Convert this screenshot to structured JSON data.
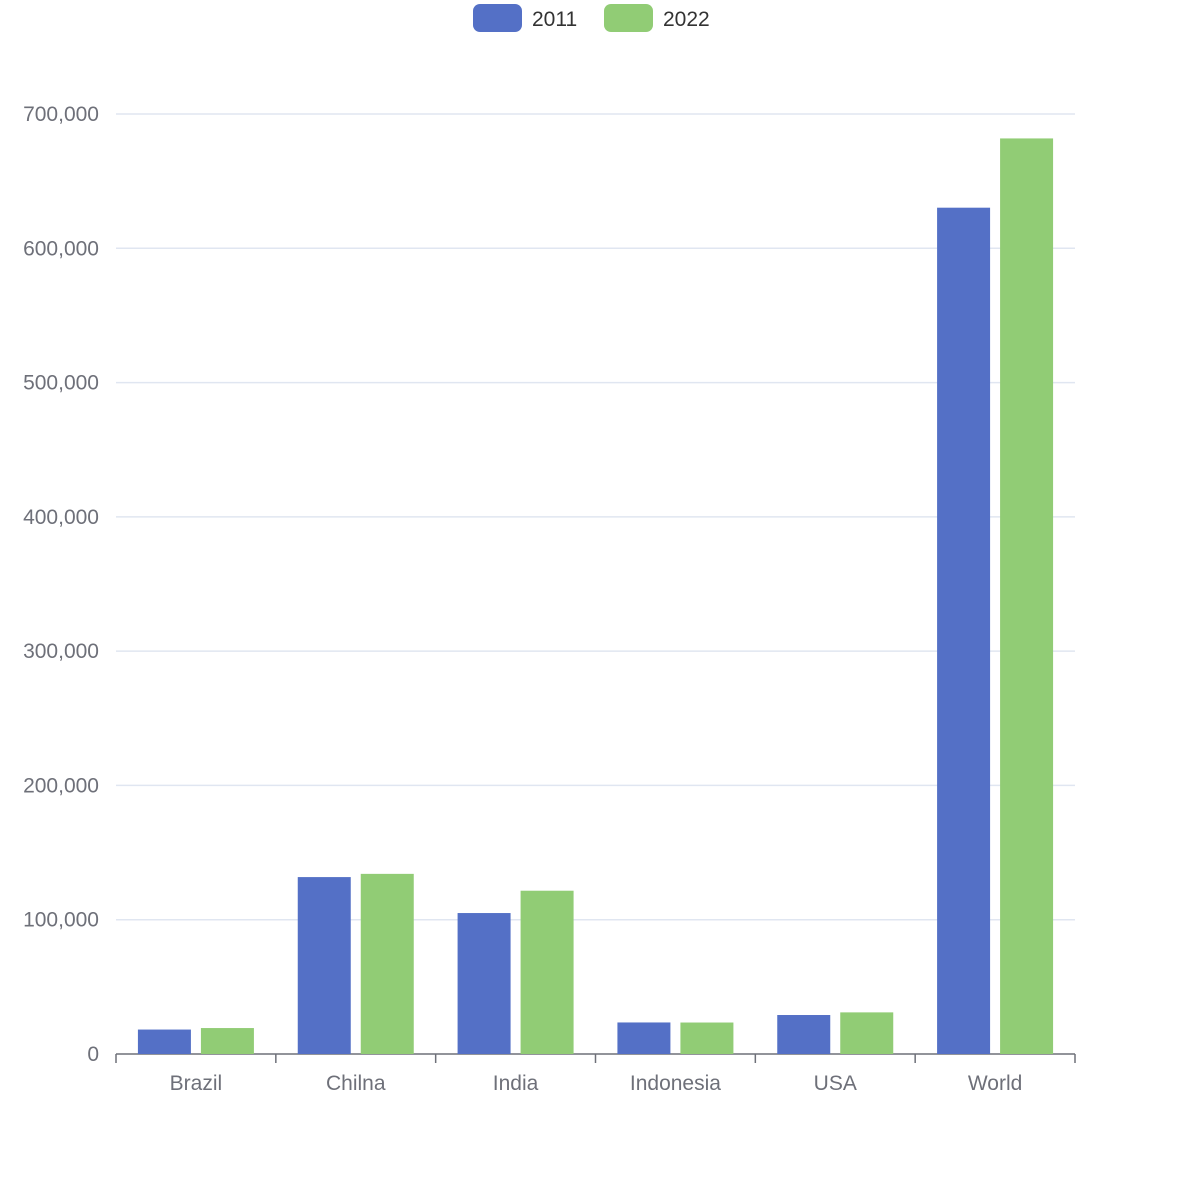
{
  "chart_data": {
    "type": "bar",
    "title": "",
    "xlabel": "",
    "ylabel": "",
    "categories": [
      "Brazil",
      "Chilna",
      "India",
      "Indonesia",
      "USA",
      "World"
    ],
    "series": [
      {
        "name": "2011",
        "color": "#5470c6",
        "values": [
          18203,
          131744,
          104970,
          23489,
          29034,
          630230
        ]
      },
      {
        "name": "2022",
        "color": "#91cc75",
        "values": [
          19325,
          134141,
          121594,
          23438,
          31000,
          681807
        ]
      }
    ],
    "ylim": [
      0,
      700000
    ],
    "yticks": [
      0,
      100000,
      200000,
      300000,
      400000,
      500000,
      600000,
      700000
    ],
    "ytick_labels": [
      "0",
      "100,000",
      "200,000",
      "300,000",
      "400,000",
      "500,000",
      "600,000",
      "700,000"
    ],
    "grid": true,
    "legend_position": "top-center"
  }
}
